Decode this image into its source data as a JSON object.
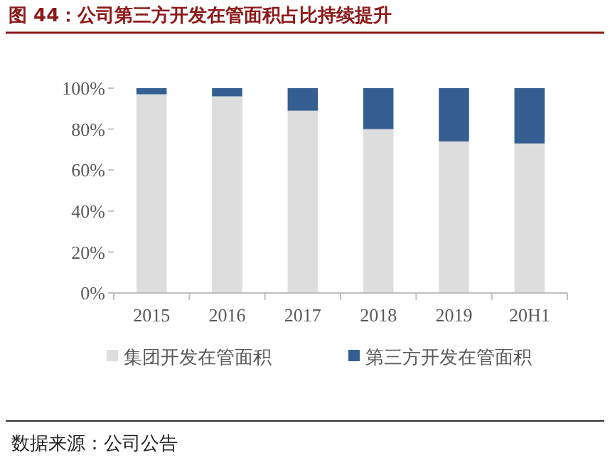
{
  "chart_data": {
    "type": "bar",
    "stacked": true,
    "title": "图 44：公司第三方开发在管面积占比持续提升",
    "categories": [
      "2015",
      "2016",
      "2017",
      "2018",
      "2019",
      "20H1"
    ],
    "series": [
      {
        "name": "集团开发在管面积",
        "color": "#dddddd",
        "values": [
          97,
          96,
          89,
          80,
          74,
          73
        ]
      },
      {
        "name": "第三方开发在管面积",
        "color": "#355f93",
        "values": [
          3,
          4,
          11,
          20,
          26,
          27
        ]
      }
    ],
    "ylim": [
      0,
      100
    ],
    "yticks": [
      {
        "value": 0,
        "label": "0%"
      },
      {
        "value": 20,
        "label": "20%"
      },
      {
        "value": 40,
        "label": "40%"
      },
      {
        "value": 60,
        "label": "60%"
      },
      {
        "value": 80,
        "label": "80%"
      },
      {
        "value": 100,
        "label": "100%"
      }
    ],
    "legend": "bottom",
    "grid": false,
    "annotations": [
      "数据来源：公司公告"
    ]
  }
}
